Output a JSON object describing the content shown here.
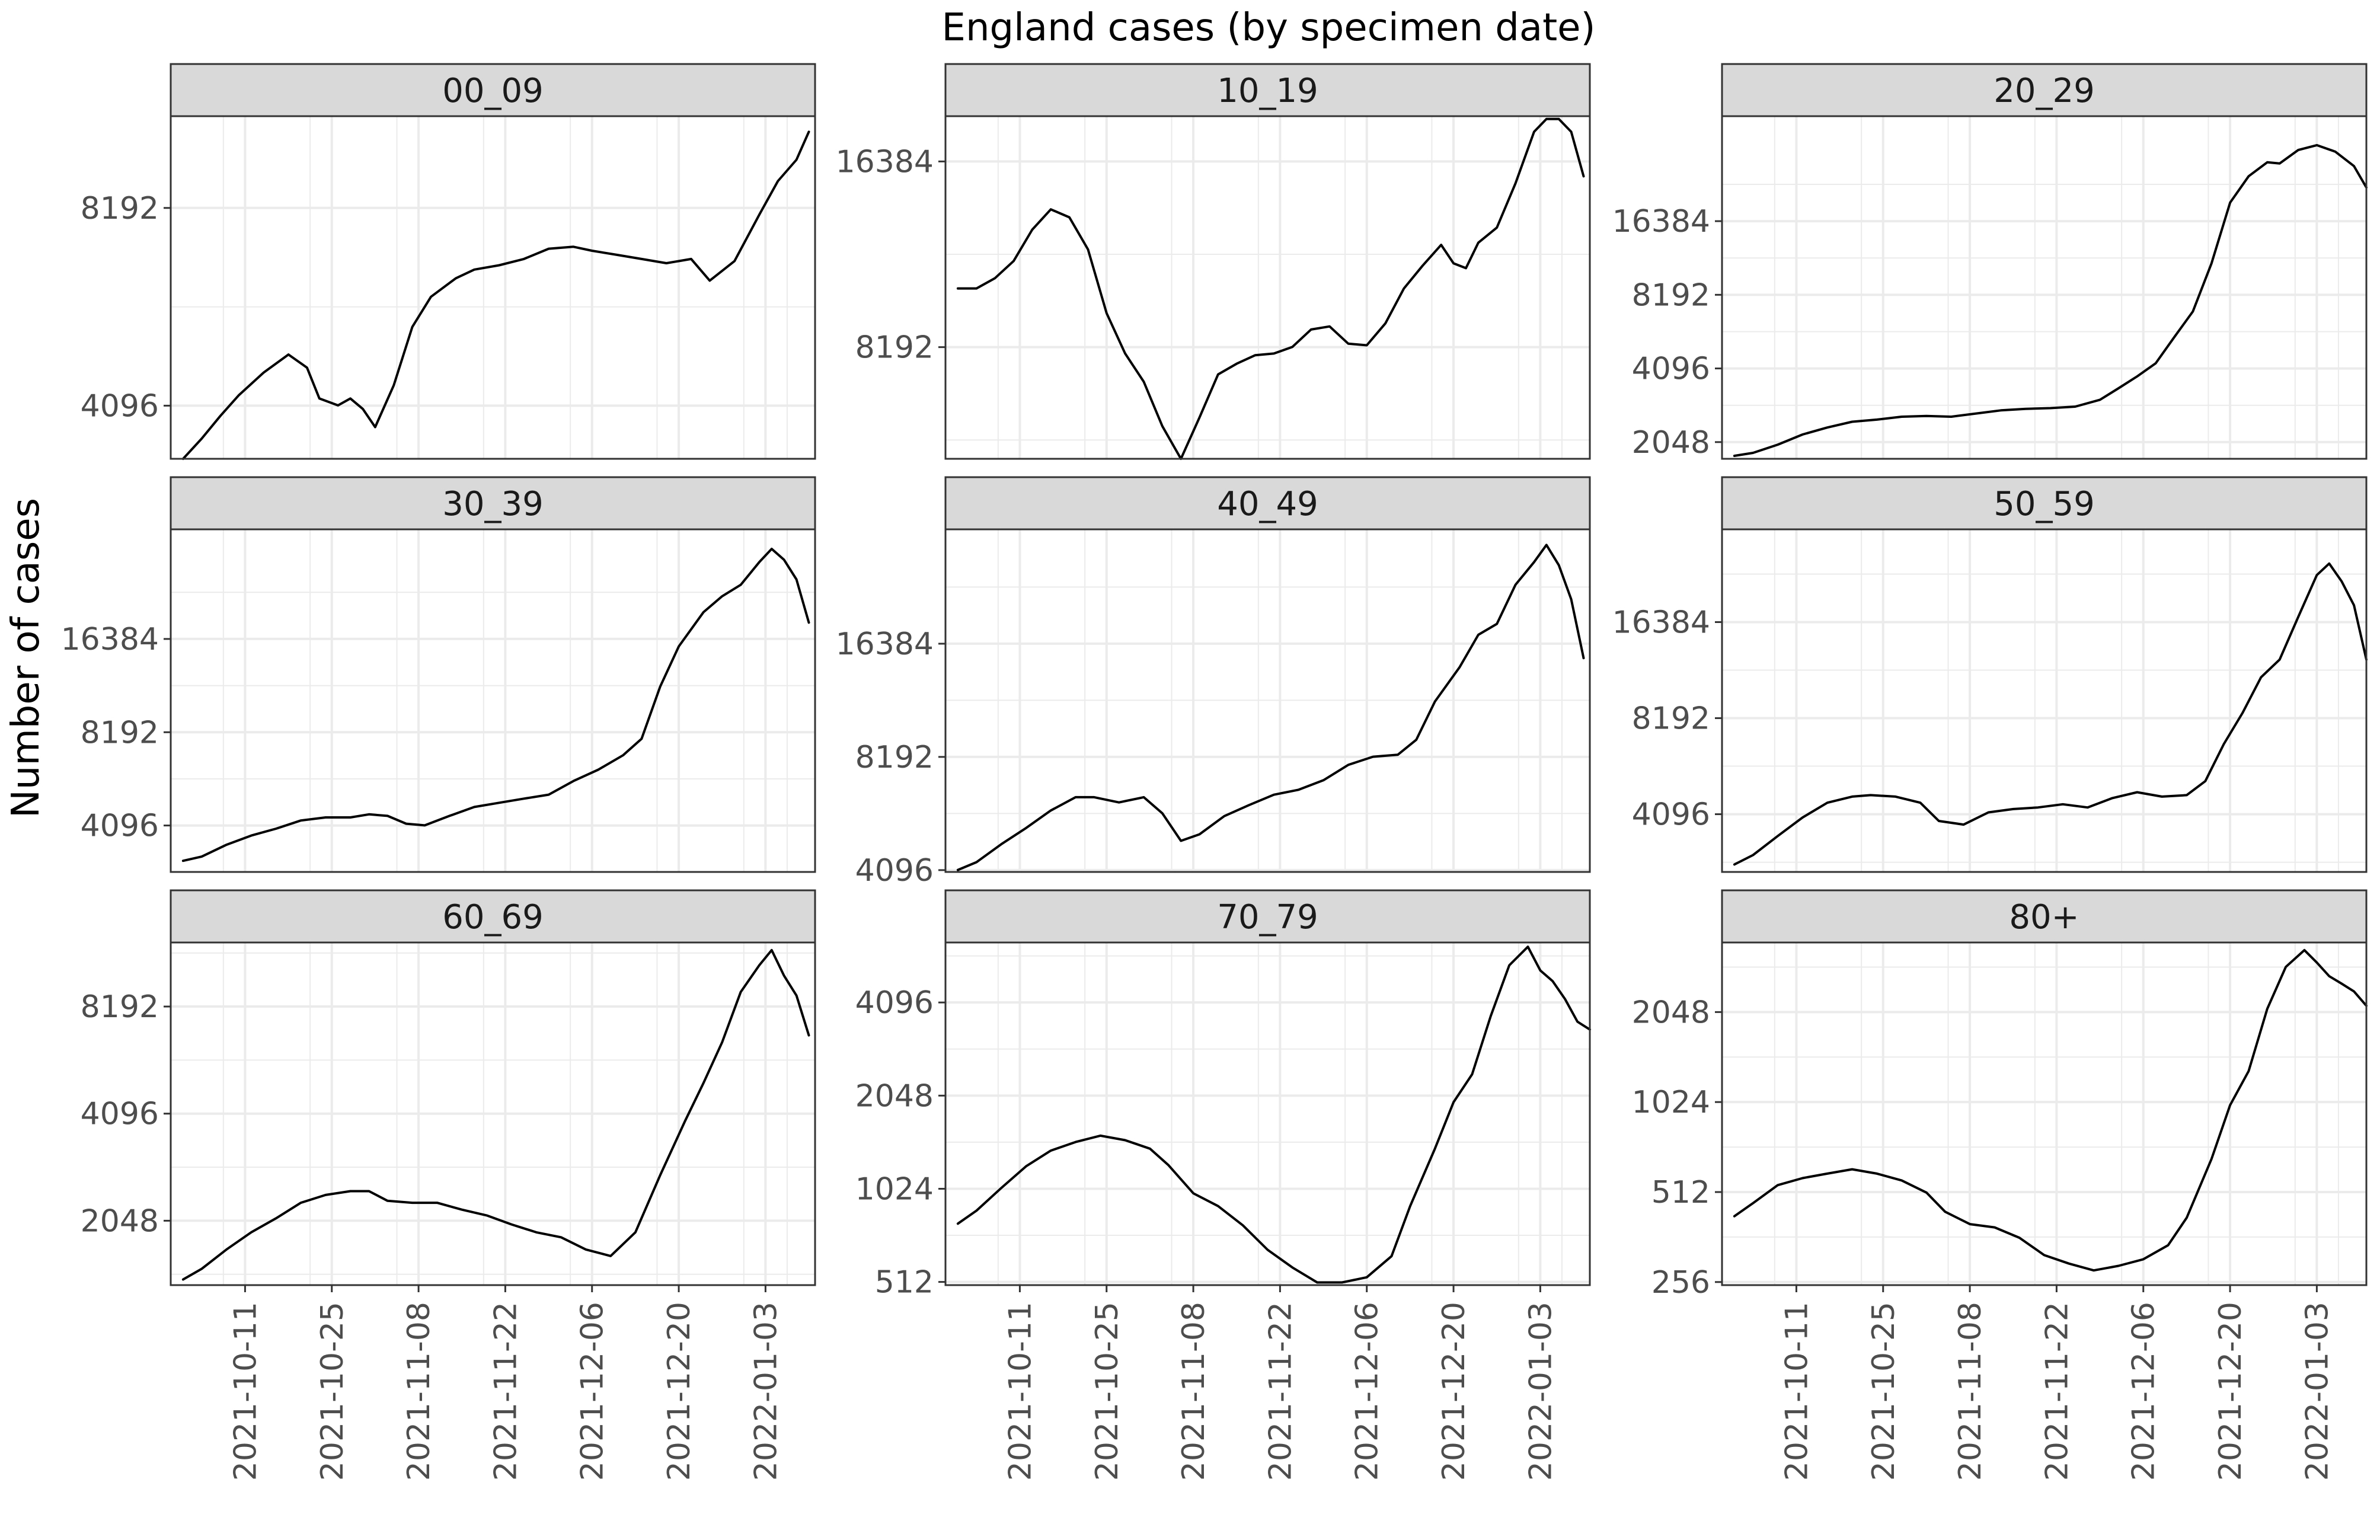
{
  "figure": {
    "title": "England cases (by specimen date)",
    "ylabel": "Number of cases",
    "xlabel": ""
  },
  "colors": {
    "line": "#000000",
    "strip_bg": "#d9d9d9",
    "panel_border": "#333333",
    "grid": "#ebebeb"
  },
  "chart_data": [
    {
      "type": "line",
      "facet": "00_09",
      "y_scale": "log2",
      "y_ticks": [
        4096,
        8192
      ],
      "ylim": [
        3400,
        11300
      ],
      "x_ticks": [
        "2021-10-11",
        "2021-10-25",
        "2021-11-08",
        "2021-11-22",
        "2021-12-06",
        "2021-12-20",
        "2022-01-03"
      ],
      "xlim": [
        "2021-09-29",
        "2022-01-11"
      ],
      "x": [
        "2021-10-01",
        "2021-10-04",
        "2021-10-07",
        "2021-10-10",
        "2021-10-14",
        "2021-10-18",
        "2021-10-21",
        "2021-10-23",
        "2021-10-26",
        "2021-10-28",
        "2021-10-30",
        "2021-11-01",
        "2021-11-04",
        "2021-11-07",
        "2021-11-10",
        "2021-11-14",
        "2021-11-17",
        "2021-11-21",
        "2021-11-25",
        "2021-11-29",
        "2021-12-03",
        "2021-12-06",
        "2021-12-10",
        "2021-12-14",
        "2021-12-18",
        "2021-12-22",
        "2021-12-25",
        "2021-12-29",
        "2022-01-02",
        "2022-01-05",
        "2022-01-08",
        "2022-01-10"
      ],
      "series": [
        {
          "values": [
            3400,
            3650,
            3950,
            4250,
            4600,
            4900,
            4680,
            4200,
            4100,
            4200,
            4050,
            3800,
            4400,
            5400,
            6000,
            6400,
            6600,
            6700,
            6850,
            7100,
            7150,
            7050,
            6950,
            6850,
            6750,
            6850,
            6350,
            6800,
            8000,
            9000,
            9700,
            10700
          ]
        }
      ]
    },
    {
      "type": "line",
      "facet": "10_19",
      "y_scale": "log2",
      "y_ticks": [
        8192,
        16384
      ],
      "ylim": [
        5400,
        19400
      ],
      "x_ticks": [
        "2021-10-11",
        "2021-10-25",
        "2021-11-08",
        "2021-11-22",
        "2021-12-06",
        "2021-12-20",
        "2022-01-03"
      ],
      "xlim": [
        "2021-09-29",
        "2022-01-11"
      ],
      "x": [
        "2021-10-01",
        "2021-10-04",
        "2021-10-07",
        "2021-10-10",
        "2021-10-13",
        "2021-10-16",
        "2021-10-19",
        "2021-10-22",
        "2021-10-25",
        "2021-10-28",
        "2021-10-31",
        "2021-11-03",
        "2021-11-06",
        "2021-11-09",
        "2021-11-12",
        "2021-11-15",
        "2021-11-18",
        "2021-11-21",
        "2021-11-24",
        "2021-11-27",
        "2021-11-30",
        "2021-12-03",
        "2021-12-06",
        "2021-12-09",
        "2021-12-12",
        "2021-12-15",
        "2021-12-18",
        "2021-12-20",
        "2021-12-22",
        "2021-12-24",
        "2021-12-27",
        "2021-12-30",
        "2022-01-02",
        "2022-01-04",
        "2022-01-06",
        "2022-01-08",
        "2022-01-10"
      ],
      "series": [
        {
          "values": [
            10200,
            10200,
            10600,
            11300,
            12700,
            13700,
            13300,
            11800,
            9300,
            8000,
            7200,
            6100,
            5400,
            6300,
            7400,
            7700,
            7950,
            8000,
            8200,
            8750,
            8850,
            8300,
            8250,
            8950,
            10200,
            11100,
            12000,
            11200,
            11000,
            12100,
            12800,
            15100,
            18300,
            19200,
            19200,
            18300,
            15500
          ]
        }
      ]
    },
    {
      "type": "line",
      "facet": "20_29",
      "y_scale": "log2",
      "y_ticks": [
        2048,
        4096,
        8192,
        16384
      ],
      "ylim": [
        1750,
        44000
      ],
      "x_ticks": [
        "2021-10-11",
        "2021-10-25",
        "2021-11-08",
        "2021-11-22",
        "2021-12-06",
        "2021-12-20",
        "2022-01-03"
      ],
      "xlim": [
        "2021-09-29",
        "2022-01-11"
      ],
      "x": [
        "2021-10-01",
        "2021-10-04",
        "2021-10-08",
        "2021-10-12",
        "2021-10-16",
        "2021-10-20",
        "2021-10-24",
        "2021-10-28",
        "2021-11-01",
        "2021-11-05",
        "2021-11-09",
        "2021-11-13",
        "2021-11-17",
        "2021-11-21",
        "2021-11-25",
        "2021-11-29",
        "2021-12-02",
        "2021-12-05",
        "2021-12-08",
        "2021-12-11",
        "2021-12-14",
        "2021-12-17",
        "2021-12-20",
        "2021-12-23",
        "2021-12-26",
        "2021-12-28",
        "2021-12-31",
        "2022-01-03",
        "2022-01-06",
        "2022-01-09",
        "2022-01-11"
      ],
      "series": [
        {
          "values": [
            1800,
            1850,
            2000,
            2200,
            2350,
            2480,
            2530,
            2600,
            2620,
            2600,
            2680,
            2760,
            2800,
            2820,
            2860,
            3050,
            3400,
            3800,
            4300,
            5500,
            7000,
            11000,
            19500,
            25000,
            28500,
            28200,
            32000,
            33500,
            31500,
            27500,
            22500
          ]
        }
      ]
    },
    {
      "type": "line",
      "facet": "30_39",
      "y_scale": "log2",
      "y_ticks": [
        4096,
        8192,
        16384
      ],
      "ylim": [
        2900,
        37000
      ],
      "x_ticks": [
        "2021-10-11",
        "2021-10-25",
        "2021-11-08",
        "2021-11-22",
        "2021-12-06",
        "2021-12-20",
        "2022-01-03"
      ],
      "xlim": [
        "2021-09-29",
        "2022-01-11"
      ],
      "x": [
        "2021-10-01",
        "2021-10-04",
        "2021-10-08",
        "2021-10-12",
        "2021-10-16",
        "2021-10-20",
        "2021-10-24",
        "2021-10-28",
        "2021-10-31",
        "2021-11-03",
        "2021-11-06",
        "2021-11-09",
        "2021-11-13",
        "2021-11-17",
        "2021-11-21",
        "2021-11-25",
        "2021-11-29",
        "2021-12-03",
        "2021-12-07",
        "2021-12-11",
        "2021-12-14",
        "2021-12-17",
        "2021-12-20",
        "2021-12-24",
        "2021-12-27",
        "2021-12-30",
        "2022-01-02",
        "2022-01-04",
        "2022-01-06",
        "2022-01-08",
        "2022-01-10"
      ],
      "series": [
        {
          "values": [
            3150,
            3250,
            3550,
            3800,
            4000,
            4250,
            4350,
            4350,
            4450,
            4400,
            4150,
            4100,
            4400,
            4700,
            4850,
            5000,
            5150,
            5700,
            6200,
            6900,
            7800,
            11500,
            15500,
            20000,
            22500,
            24500,
            29000,
            32000,
            29500,
            25500,
            18500
          ]
        }
      ]
    },
    {
      "type": "line",
      "facet": "40_49",
      "y_scale": "log2",
      "y_ticks": [
        4096,
        8192,
        16384
      ],
      "ylim": [
        4050,
        33000
      ],
      "x_ticks": [
        "2021-10-11",
        "2021-10-25",
        "2021-11-08",
        "2021-11-22",
        "2021-12-06",
        "2021-12-20",
        "2022-01-03"
      ],
      "xlim": [
        "2021-09-29",
        "2022-01-11"
      ],
      "x": [
        "2021-10-01",
        "2021-10-04",
        "2021-10-08",
        "2021-10-12",
        "2021-10-16",
        "2021-10-20",
        "2021-10-23",
        "2021-10-27",
        "2021-10-31",
        "2021-11-03",
        "2021-11-06",
        "2021-11-09",
        "2021-11-13",
        "2021-11-17",
        "2021-11-21",
        "2021-11-25",
        "2021-11-29",
        "2021-12-03",
        "2021-12-07",
        "2021-12-11",
        "2021-12-14",
        "2021-12-17",
        "2021-12-21",
        "2021-12-24",
        "2021-12-27",
        "2021-12-30",
        "2022-01-02",
        "2022-01-04",
        "2022-01-06",
        "2022-01-08",
        "2022-01-10"
      ],
      "series": [
        {
          "values": [
            4100,
            4300,
            4800,
            5300,
            5900,
            6400,
            6400,
            6200,
            6400,
            5800,
            4900,
            5100,
            5700,
            6100,
            6500,
            6700,
            7100,
            7800,
            8200,
            8300,
            9100,
            11500,
            14200,
            17300,
            18500,
            23500,
            27000,
            30000,
            26500,
            21500,
            15000
          ]
        }
      ]
    },
    {
      "type": "line",
      "facet": "50_59",
      "y_scale": "log2",
      "y_ticks": [
        4096,
        8192,
        16384
      ],
      "ylim": [
        2700,
        32000
      ],
      "x_ticks": [
        "2021-10-11",
        "2021-10-25",
        "2021-11-08",
        "2021-11-22",
        "2021-12-06",
        "2021-12-20",
        "2022-01-03"
      ],
      "xlim": [
        "2021-09-29",
        "2022-01-11"
      ],
      "x": [
        "2021-10-01",
        "2021-10-04",
        "2021-10-08",
        "2021-10-12",
        "2021-10-16",
        "2021-10-20",
        "2021-10-23",
        "2021-10-27",
        "2021-10-31",
        "2021-11-03",
        "2021-11-07",
        "2021-11-11",
        "2021-11-15",
        "2021-11-19",
        "2021-11-23",
        "2021-11-27",
        "2021-12-01",
        "2021-12-05",
        "2021-12-09",
        "2021-12-13",
        "2021-12-16",
        "2021-12-19",
        "2021-12-22",
        "2021-12-25",
        "2021-12-28",
        "2021-12-31",
        "2022-01-03",
        "2022-01-05",
        "2022-01-07",
        "2022-01-09",
        "2022-01-11"
      ],
      "series": [
        {
          "values": [
            2850,
            3050,
            3500,
            4000,
            4450,
            4650,
            4700,
            4650,
            4450,
            3900,
            3800,
            4150,
            4250,
            4300,
            4400,
            4300,
            4600,
            4800,
            4650,
            4700,
            5200,
            6800,
            8500,
            11000,
            12500,
            17000,
            23000,
            25000,
            22000,
            18500,
            12500
          ]
        }
      ]
    },
    {
      "type": "line",
      "facet": "60_69",
      "y_scale": "log2",
      "y_ticks": [
        2048,
        4096,
        8192
      ],
      "ylim": [
        1350,
        12400
      ],
      "x_ticks": [
        "2021-10-11",
        "2021-10-25",
        "2021-11-08",
        "2021-11-22",
        "2021-12-06",
        "2021-12-20",
        "2022-01-03"
      ],
      "xlim": [
        "2021-09-29",
        "2022-01-11"
      ],
      "x": [
        "2021-10-01",
        "2021-10-04",
        "2021-10-08",
        "2021-10-12",
        "2021-10-16",
        "2021-10-20",
        "2021-10-24",
        "2021-10-28",
        "2021-10-31",
        "2021-11-03",
        "2021-11-07",
        "2021-11-11",
        "2021-11-15",
        "2021-11-19",
        "2021-11-23",
        "2021-11-27",
        "2021-12-01",
        "2021-12-05",
        "2021-12-09",
        "2021-12-13",
        "2021-12-17",
        "2021-12-21",
        "2021-12-24",
        "2021-12-27",
        "2021-12-30",
        "2022-01-02",
        "2022-01-04",
        "2022-01-06",
        "2022-01-08",
        "2022-01-10"
      ],
      "series": [
        {
          "values": [
            1400,
            1500,
            1700,
            1900,
            2080,
            2300,
            2420,
            2480,
            2480,
            2330,
            2300,
            2300,
            2200,
            2120,
            2000,
            1900,
            1840,
            1700,
            1630,
            1900,
            2750,
            3900,
            5000,
            6500,
            9000,
            10700,
            11800,
            10000,
            8800,
            6800
          ]
        }
      ]
    },
    {
      "type": "line",
      "facet": "70_79",
      "y_scale": "log2",
      "y_ticks": [
        512,
        1024,
        2048,
        4096
      ],
      "ylim": [
        500,
        6400
      ],
      "x_ticks": [
        "2021-10-11",
        "2021-10-25",
        "2021-11-08",
        "2021-11-22",
        "2021-12-06",
        "2021-12-20",
        "2022-01-03"
      ],
      "xlim": [
        "2021-09-29",
        "2022-01-11"
      ],
      "x": [
        "2021-10-01",
        "2021-10-04",
        "2021-10-08",
        "2021-10-12",
        "2021-10-16",
        "2021-10-20",
        "2021-10-24",
        "2021-10-28",
        "2021-11-01",
        "2021-11-04",
        "2021-11-08",
        "2021-11-12",
        "2021-11-16",
        "2021-11-20",
        "2021-11-24",
        "2021-11-28",
        "2021-12-02",
        "2021-12-06",
        "2021-12-10",
        "2021-12-13",
        "2021-12-17",
        "2021-12-20",
        "2021-12-23",
        "2021-12-26",
        "2021-12-29",
        "2022-01-01",
        "2022-01-03",
        "2022-01-05",
        "2022-01-07",
        "2022-01-09",
        "2022-01-11"
      ],
      "series": [
        {
          "values": [
            790,
            870,
            1030,
            1210,
            1360,
            1450,
            1520,
            1470,
            1380,
            1220,
            990,
            900,
            780,
            650,
            570,
            510,
            510,
            530,
            620,
            900,
            1380,
            1950,
            2400,
            3700,
            5400,
            6200,
            5200,
            4800,
            4200,
            3550,
            3350
          ]
        }
      ]
    },
    {
      "type": "line",
      "facet": "80+",
      "y_scale": "log2",
      "y_ticks": [
        256,
        512,
        1024,
        2048
      ],
      "ylim": [
        250,
        3500
      ],
      "x_ticks": [
        "2021-10-11",
        "2021-10-25",
        "2021-11-08",
        "2021-11-22",
        "2021-12-06",
        "2021-12-20",
        "2022-01-03"
      ],
      "xlim": [
        "2021-09-29",
        "2022-01-11"
      ],
      "x": [
        "2021-10-01",
        "2021-10-04",
        "2021-10-08",
        "2021-10-12",
        "2021-10-16",
        "2021-10-20",
        "2021-10-24",
        "2021-10-28",
        "2021-11-01",
        "2021-11-04",
        "2021-11-08",
        "2021-11-12",
        "2021-11-16",
        "2021-11-20",
        "2021-11-24",
        "2021-11-28",
        "2021-12-02",
        "2021-12-06",
        "2021-12-10",
        "2021-12-13",
        "2021-12-17",
        "2021-12-20",
        "2021-12-23",
        "2021-12-26",
        "2021-12-29",
        "2022-01-01",
        "2022-01-03",
        "2022-01-05",
        "2022-01-07",
        "2022-01-09",
        "2022-01-11"
      ],
      "series": [
        {
          "values": [
            425,
            470,
            540,
            570,
            590,
            610,
            590,
            560,
            510,
            440,
            400,
            390,
            360,
            315,
            295,
            280,
            290,
            305,
            340,
            420,
            660,
            1000,
            1300,
            2100,
            2900,
            3300,
            3000,
            2700,
            2550,
            2400,
            2150
          ]
        }
      ]
    }
  ]
}
